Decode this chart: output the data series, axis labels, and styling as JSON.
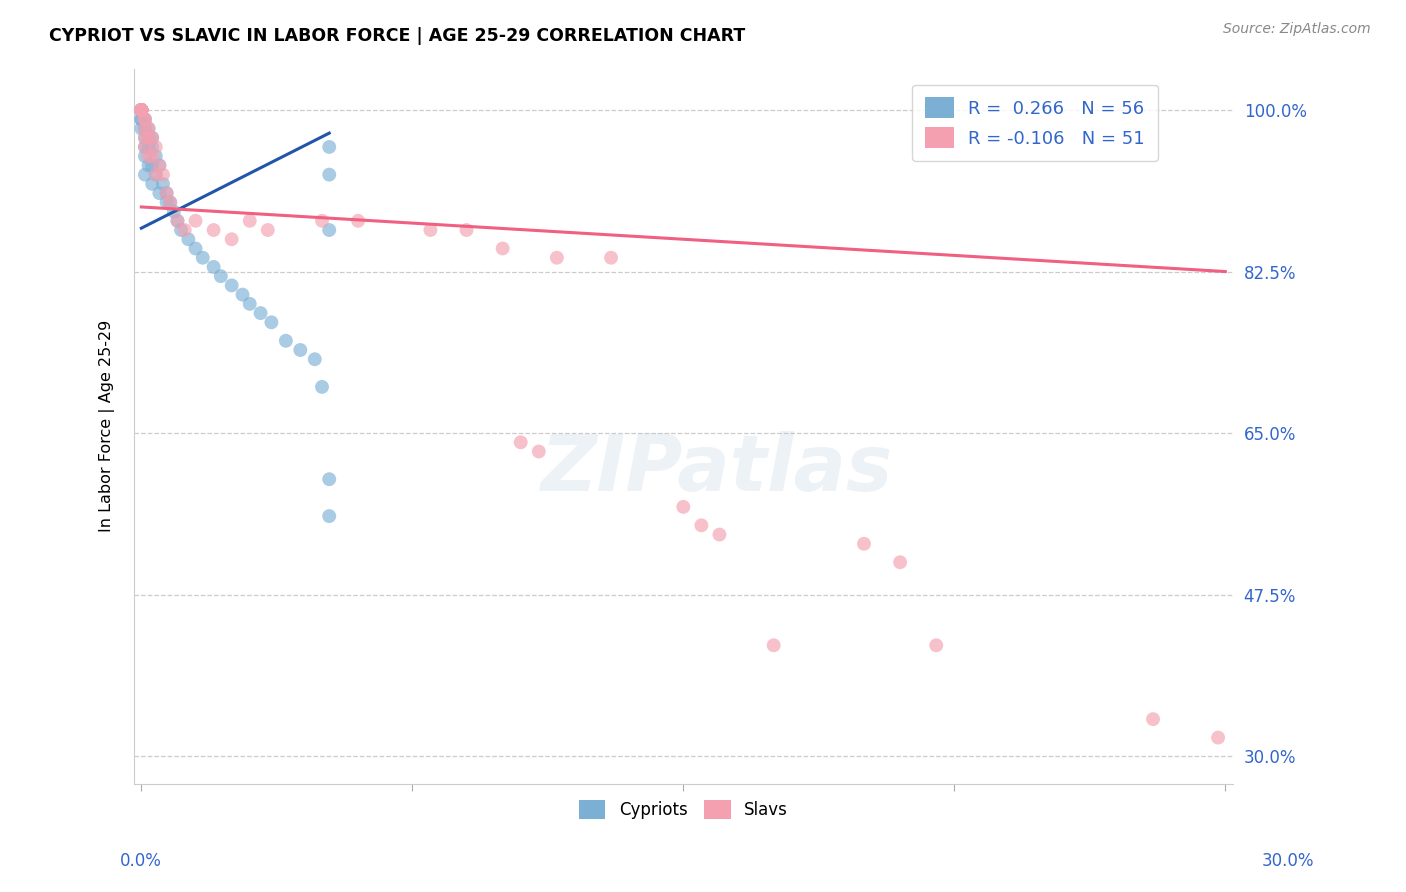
{
  "title": "CYPRIOT VS SLAVIC IN LABOR FORCE | AGE 25-29 CORRELATION CHART",
  "source": "Source: ZipAtlas.com",
  "ylabel": "In Labor Force | Age 25-29",
  "yticks": [
    0.3,
    0.475,
    0.65,
    0.825,
    1.0
  ],
  "ytick_labels": [
    "30.0%",
    "47.5%",
    "65.0%",
    "82.5%",
    "100.0%"
  ],
  "xlim": [
    -0.002,
    0.302
  ],
  "ylim": [
    0.27,
    1.045
  ],
  "cypriot_color": "#7BAFD4",
  "slav_color": "#F4A0B0",
  "cypriot_line_color": "#2255AA",
  "slav_line_color": "#F06080",
  "legend_r_cypriot": "0.266",
  "legend_n_cypriot": "56",
  "legend_r_slav": "-0.106",
  "legend_n_slav": "51",
  "cypriot_line_x0": 0.0,
  "cypriot_line_x1": 0.052,
  "cypriot_line_y0": 0.872,
  "cypriot_line_y1": 0.975,
  "slav_line_x0": 0.0,
  "slav_line_x1": 0.3,
  "slav_line_y0": 0.895,
  "slav_line_y1": 0.825,
  "cypriot_x": [
    0.0,
    0.0,
    0.0,
    0.0,
    0.0,
    0.0,
    0.0,
    0.0,
    0.0,
    0.0,
    0.0,
    0.0,
    0.001,
    0.001,
    0.001,
    0.001,
    0.001,
    0.001,
    0.002,
    0.002,
    0.002,
    0.002,
    0.003,
    0.003,
    0.003,
    0.003,
    0.004,
    0.004,
    0.005,
    0.005,
    0.006,
    0.007,
    0.007,
    0.008,
    0.009,
    0.01,
    0.011,
    0.013,
    0.015,
    0.017,
    0.02,
    0.022,
    0.025,
    0.028,
    0.03,
    0.033,
    0.036,
    0.04,
    0.044,
    0.048,
    0.05,
    0.052,
    0.052,
    0.052,
    0.052,
    0.052
  ],
  "cypriot_y": [
    1.0,
    1.0,
    1.0,
    1.0,
    1.0,
    1.0,
    1.0,
    1.0,
    1.0,
    0.99,
    0.99,
    0.98,
    0.99,
    0.98,
    0.97,
    0.96,
    0.95,
    0.93,
    0.98,
    0.97,
    0.96,
    0.94,
    0.97,
    0.96,
    0.94,
    0.92,
    0.95,
    0.93,
    0.94,
    0.91,
    0.92,
    0.91,
    0.9,
    0.9,
    0.89,
    0.88,
    0.87,
    0.86,
    0.85,
    0.84,
    0.83,
    0.82,
    0.81,
    0.8,
    0.79,
    0.78,
    0.77,
    0.75,
    0.74,
    0.73,
    0.7,
    0.96,
    0.93,
    0.87,
    0.6,
    0.56
  ],
  "slav_x": [
    0.0,
    0.0,
    0.0,
    0.0,
    0.0,
    0.0,
    0.0,
    0.0,
    0.0,
    0.0,
    0.001,
    0.001,
    0.001,
    0.001,
    0.001,
    0.002,
    0.002,
    0.002,
    0.003,
    0.003,
    0.004,
    0.004,
    0.005,
    0.006,
    0.007,
    0.008,
    0.01,
    0.012,
    0.015,
    0.02,
    0.025,
    0.03,
    0.035,
    0.05,
    0.06,
    0.08,
    0.09,
    0.1,
    0.105,
    0.11,
    0.115,
    0.13,
    0.15,
    0.155,
    0.16,
    0.175,
    0.2,
    0.21,
    0.22,
    0.28,
    0.298
  ],
  "slav_y": [
    1.0,
    1.0,
    1.0,
    1.0,
    1.0,
    1.0,
    1.0,
    1.0,
    1.0,
    1.0,
    0.99,
    0.99,
    0.98,
    0.97,
    0.96,
    0.98,
    0.97,
    0.95,
    0.97,
    0.95,
    0.96,
    0.93,
    0.94,
    0.93,
    0.91,
    0.9,
    0.88,
    0.87,
    0.88,
    0.87,
    0.86,
    0.88,
    0.87,
    0.88,
    0.88,
    0.87,
    0.87,
    0.85,
    0.64,
    0.63,
    0.84,
    0.84,
    0.57,
    0.55,
    0.54,
    0.42,
    0.53,
    0.51,
    0.42,
    0.34,
    0.32
  ]
}
